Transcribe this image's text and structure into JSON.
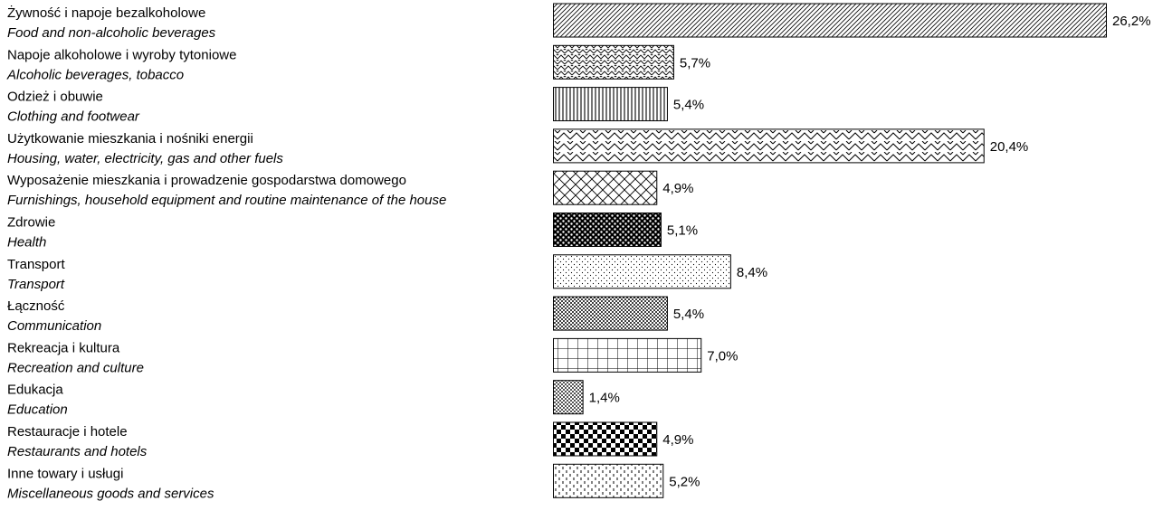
{
  "chart_data": {
    "type": "bar",
    "orientation": "horizontal",
    "categories": [
      {
        "pl": "Żywność i napoje bezalkoholowe",
        "en": "Food and non-alcoholic beverages"
      },
      {
        "pl": "Napoje alkoholowe i wyroby tytoniowe",
        "en": "Alcoholic beverages, tobacco"
      },
      {
        "pl": "Odzież i obuwie",
        "en": "Clothing and footwear"
      },
      {
        "pl": "Użytkowanie mieszkania i nośniki energii",
        "en": "Housing, water, electricity, gas and other fuels"
      },
      {
        "pl": "Wyposażenie mieszkania i prowadzenie gospodarstwa domowego",
        "en": "Furnishings, household equipment and routine maintenance of the house"
      },
      {
        "pl": "Zdrowie",
        "en": "Health"
      },
      {
        "pl": "Transport",
        "en": "Transport"
      },
      {
        "pl": "Łączność",
        "en": "Communication"
      },
      {
        "pl": "Rekreacja i kultura",
        "en": "Recreation and culture"
      },
      {
        "pl": "Edukacja",
        "en": "Education"
      },
      {
        "pl": "Restauracje i hotele",
        "en": "Restaurants and hotels"
      },
      {
        "pl": "Inne towary i usługi",
        "en": "Miscellaneous goods and services"
      }
    ],
    "values": [
      26.2,
      5.7,
      5.4,
      20.4,
      4.9,
      5.1,
      8.4,
      5.4,
      7.0,
      1.4,
      4.9,
      5.2
    ],
    "value_labels": [
      "26,2%",
      "5,7%",
      "5,4%",
      "20,4%",
      "4,9%",
      "5,1%",
      "8,4%",
      "5,4%",
      "7,0%",
      "1,4%",
      "4,9%",
      "5,2%"
    ],
    "patterns": [
      "diag-dense",
      "zigzag-tight",
      "vertical-lines",
      "zigzag",
      "diag-cross",
      "check-bold",
      "sparse-dots",
      "dots-dense",
      "grid",
      "fine-check",
      "checkerboard",
      "dashed-vertical"
    ],
    "xlim": [
      0,
      26.2
    ],
    "grid": false,
    "legend": "none"
  }
}
